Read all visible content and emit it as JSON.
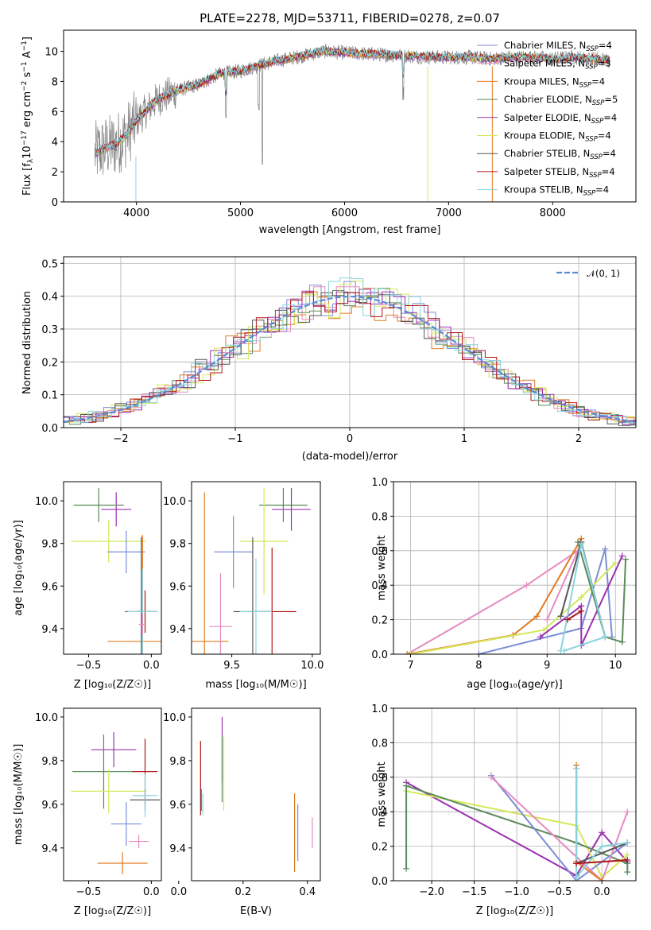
{
  "figure": {
    "title": "PLATE=2278, MJD=53711, FIBERID=0278, z=0.07"
  },
  "colors": {
    "Chabrier MILES": "#7b8dd6",
    "Salpeter MILES": "#e58ac0",
    "Kroupa MILES": "#e07b20",
    "Chabrier ELODIE": "#5a8a5a",
    "Salpeter ELODIE": "#9b30b0",
    "Kroupa ELODIE": "#d4e85a",
    "Chabrier STELIB": "#555555",
    "Salpeter STELIB": "#b01515",
    "Kroupa STELIB": "#8ad4e0",
    "data": "#808080",
    "gaussian": "#5b8bd6"
  },
  "chart_data": [
    {
      "id": "spectrum",
      "type": "line",
      "title": "PLATE=2278, MJD=53711, FIBERID=0278, z=0.07",
      "xlabel": "wavelength [Angstrom, rest frame]",
      "ylabel_main": "Flux [f",
      "ylabel_sub": "λ",
      "ylabel_rest": "10",
      "ylabel_sup1": "−17",
      "ylabel_mid": " erg cm",
      "ylabel_sup2": "−2",
      "ylabel_s": " s",
      "ylabel_sup3": "−1",
      "ylabel_A": " A",
      "ylabel_sup4": "−1",
      "ylabel_end": "]",
      "xlim": [
        3300,
        8800
      ],
      "ylim": [
        0,
        11.4
      ],
      "xticks": [
        4000,
        5000,
        6000,
        7000,
        8000
      ],
      "yticks": [
        0,
        2,
        4,
        6,
        8,
        10
      ],
      "continuum_x": [
        3600,
        3700,
        3800,
        3900,
        4000,
        4200,
        4400,
        4600,
        4800,
        5000,
        5300,
        5600,
        5800,
        6000,
        6300,
        6600,
        6900,
        7200,
        7400,
        7600,
        7800,
        8000,
        8200,
        8400,
        8550
      ],
      "continuum_y": [
        3.2,
        3.6,
        3.8,
        4.4,
        5.4,
        6.8,
        7.4,
        7.8,
        8.5,
        8.7,
        9.3,
        9.7,
        10.0,
        9.9,
        9.8,
        9.7,
        9.6,
        9.6,
        9.5,
        9.6,
        9.6,
        9.5,
        9.6,
        9.5,
        9.4
      ],
      "legend": [
        {
          "name": "Chabrier MILES",
          "label": "Chabrier MILES, N",
          "sub": "SSP",
          "val": "=4"
        },
        {
          "name": "Salpeter MILES",
          "label": "Salpeter MILES, N",
          "sub": "SSP",
          "val": "=3"
        },
        {
          "name": "Kroupa MILES",
          "label": "Kroupa MILES, N",
          "sub": "SSP",
          "val": "=4"
        },
        {
          "name": "Chabrier ELODIE",
          "label": "Chabrier ELODIE, N",
          "sub": "SSP",
          "val": "=5"
        },
        {
          "name": "Salpeter ELODIE",
          "label": "Salpeter ELODIE, N",
          "sub": "SSP",
          "val": "=4"
        },
        {
          "name": "Kroupa ELODIE",
          "label": "Kroupa ELODIE, N",
          "sub": "SSP",
          "val": "=4"
        },
        {
          "name": "Chabrier STELIB",
          "label": "Chabrier STELIB, N",
          "sub": "SSP",
          "val": "=4"
        },
        {
          "name": "Salpeter STELIB",
          "label": "Salpeter STELIB, N",
          "sub": "SSP",
          "val": "=4"
        },
        {
          "name": "Kroupa STELIB",
          "label": "Kroupa STELIB, N",
          "sub": "SSP",
          "val": "=4"
        }
      ]
    },
    {
      "id": "residuals",
      "type": "histogram",
      "xlabel": "(data-model)/error",
      "ylabel": "Normed distribution",
      "xlim": [
        -2.5,
        2.5
      ],
      "ylim": [
        0,
        0.52
      ],
      "xticks": [
        -2,
        -1,
        0,
        1,
        2
      ],
      "xticklabels": [
        "−2",
        "−1",
        "0",
        "1",
        "2"
      ],
      "yticks": [
        0.0,
        0.1,
        0.2,
        0.3,
        0.4,
        0.5
      ],
      "yticklabels": [
        "0.0",
        "0.1",
        "0.2",
        "0.3",
        "0.4",
        "0.5"
      ],
      "grid": true,
      "gaussian_label": "𝒩(0, 1)",
      "bin_width": 0.1
    },
    {
      "id": "age-vs-Z",
      "type": "errorbar",
      "xlabel": "Z [log₁₀(Z/Z☉)]",
      "ylabel": "age  [log₁₀(age/yr)]",
      "xlim": [
        -0.7,
        0.08
      ],
      "ylim": [
        9.28,
        10.09
      ],
      "xticks": [
        -0.5,
        0.0
      ],
      "xticklabels": [
        "−0.5",
        "0.0"
      ],
      "yticks": [
        9.4,
        9.6,
        9.8,
        10.0
      ],
      "yticklabels": [
        "9.4",
        "9.6",
        "9.8",
        "10.0"
      ],
      "points": [
        {
          "model": "Salpeter ELODIE",
          "x": -0.28,
          "xerr": 0.12,
          "y": 9.96,
          "yerr": 0.08
        },
        {
          "model": "Chabrier ELODIE",
          "x": -0.42,
          "xerr": 0.2,
          "y": 9.98,
          "yerr": 0.08
        },
        {
          "model": "Kroupa ELODIE",
          "x": -0.34,
          "xerr": 0.3,
          "y": 9.81,
          "yerr": 0.1
        },
        {
          "model": "Chabrier MILES",
          "x": -0.2,
          "xerr": 0.15,
          "y": 9.76,
          "yerr": 0.1
        },
        {
          "model": "Kroupa MILES",
          "x": -0.07,
          "xerr": 0.28,
          "y": 9.34,
          "yerr": 0.5
        },
        {
          "model": "Chabrier STELIB",
          "x": -0.08,
          "xerr": 0.13,
          "y": 9.48,
          "yerr": 0.35
        },
        {
          "model": "Salpeter STELIB",
          "x": -0.05,
          "xerr": 0.08,
          "y": 9.48,
          "yerr": 0.1
        },
        {
          "model": "Kroupa STELIB",
          "x": -0.07,
          "xerr": 0.12,
          "y": 9.48,
          "yerr": 0.2
        },
        {
          "model": "Salpeter MILES",
          "x": -0.07,
          "xerr": 0.03,
          "y": 9.42,
          "yerr": 0.05
        }
      ]
    },
    {
      "id": "age-vs-mass",
      "type": "errorbar",
      "xlabel": "mass [log₁₀(M/M☉)]",
      "xlim": [
        9.25,
        10.05
      ],
      "ylim": [
        9.28,
        10.09
      ],
      "xticks": [
        9.5,
        10.0
      ],
      "xticklabels": [
        "9.5",
        "10.0"
      ],
      "yticks": [
        9.4,
        9.6,
        9.8,
        10.0
      ],
      "yticklabels": [
        "9.4",
        "9.6",
        "9.8",
        "10.0"
      ],
      "points": [
        {
          "model": "Salpeter ELODIE",
          "x": 9.87,
          "xerr": 0.12,
          "y": 9.96,
          "yerr": 0.1
        },
        {
          "model": "Chabrier ELODIE",
          "x": 9.82,
          "xerr": 0.15,
          "y": 9.98,
          "yerr": 0.08
        },
        {
          "model": "Kroupa ELODIE",
          "x": 9.7,
          "xerr": 0.15,
          "y": 9.81,
          "yerr": 0.25
        },
        {
          "model": "Chabrier MILES",
          "x": 9.51,
          "xerr": 0.12,
          "y": 9.76,
          "yerr": 0.17
        },
        {
          "model": "Kroupa MILES",
          "x": 9.33,
          "xerr": 0.15,
          "y": 9.34,
          "yerr": 0.7
        },
        {
          "model": "Salpeter MILES",
          "x": 9.43,
          "xerr": 0.07,
          "y": 9.41,
          "yerr": 0.25
        },
        {
          "model": "Chabrier STELIB",
          "x": 9.63,
          "xerr": 0.12,
          "y": 9.48,
          "yerr": 0.35
        },
        {
          "model": "Salpeter STELIB",
          "x": 9.75,
          "xerr": 0.15,
          "y": 9.48,
          "yerr": 0.3
        },
        {
          "model": "Kroupa STELIB",
          "x": 9.65,
          "xerr": 0.1,
          "y": 9.48,
          "yerr": 0.25
        }
      ]
    },
    {
      "id": "weight-vs-age",
      "type": "line",
      "xlabel": "age  [log₁₀(age/yr)]",
      "ylabel": "mass weight",
      "xlim": [
        6.75,
        10.3
      ],
      "ylim": [
        0,
        1
      ],
      "xticks": [
        7,
        8,
        9,
        10
      ],
      "yticks": [
        0.0,
        0.2,
        0.4,
        0.6,
        0.8,
        1.0
      ],
      "yticklabels": [
        "0.0",
        "0.2",
        "0.4",
        "0.6",
        "0.8",
        "1.0"
      ],
      "grid": true,
      "series": [
        {
          "model": "Salpeter MILES",
          "x": [
            6.95,
            8.7,
            9.45,
            9.0
          ],
          "y": [
            0.0,
            0.4,
            0.6,
            0.2
          ]
        },
        {
          "model": "Kroupa MILES",
          "x": [
            6.95,
            8.5,
            8.85,
            9.5
          ],
          "y": [
            0.0,
            0.11,
            0.22,
            0.67
          ]
        },
        {
          "model": "Chabrier MILES",
          "x": [
            8.0,
            9.5,
            9.85,
            9.95
          ],
          "y": [
            0.0,
            0.15,
            0.61,
            0.1
          ]
        },
        {
          "model": "Kroupa ELODIE",
          "x": [
            7.0,
            8.95,
            9.5,
            10.0
          ],
          "y": [
            0.0,
            0.14,
            0.33,
            0.53
          ]
        },
        {
          "model": "Salpeter ELODIE",
          "x": [
            8.9,
            9.5,
            9.5,
            10.1
          ],
          "y": [
            0.1,
            0.28,
            0.05,
            0.57
          ]
        },
        {
          "model": "Chabrier ELODIE",
          "x": [
            9.45,
            9.85,
            10.1,
            10.15
          ],
          "y": [
            0.65,
            0.1,
            0.07,
            0.55
          ]
        },
        {
          "model": "Chabrier STELIB",
          "x": [
            9.2,
            9.5,
            9.85
          ],
          "y": [
            0.22,
            0.65,
            0.1
          ]
        },
        {
          "model": "Kroupa STELIB",
          "x": [
            9.2,
            9.5,
            9.85,
            9.25
          ],
          "y": [
            0.02,
            0.64,
            0.1,
            0.02
          ]
        },
        {
          "model": "Salpeter STELIB",
          "x": [
            9.3,
            9.5
          ],
          "y": [
            0.2,
            0.25
          ]
        }
      ]
    },
    {
      "id": "mass-vs-Z",
      "type": "errorbar",
      "xlabel": "Z [log₁₀(Z/Z☉)]",
      "ylabel": "mass [log₁₀(M/M☉)]",
      "xlim": [
        -0.7,
        0.08
      ],
      "ylim": [
        9.25,
        10.04
      ],
      "xticks": [
        -0.5,
        0.0
      ],
      "xticklabels": [
        "−0.5",
        "0.0"
      ],
      "yticks": [
        9.4,
        9.6,
        9.8,
        10.0
      ],
      "yticklabels": [
        "9.4",
        "9.6",
        "9.8",
        "10.0"
      ],
      "points": [
        {
          "model": "Salpeter ELODIE",
          "x": -0.3,
          "xerr": 0.18,
          "y": 9.85,
          "yerr": 0.08
        },
        {
          "model": "Chabrier ELODIE",
          "x": -0.38,
          "xerr": 0.25,
          "y": 9.75,
          "yerr": 0.17
        },
        {
          "model": "Kroupa ELODIE",
          "x": -0.34,
          "xerr": 0.3,
          "y": 9.66,
          "yerr": 0.1
        },
        {
          "model": "Chabrier MILES",
          "x": -0.2,
          "xerr": 0.12,
          "y": 9.51,
          "yerr": 0.1
        },
        {
          "model": "Kroupa MILES",
          "x": -0.23,
          "xerr": 0.2,
          "y": 9.33,
          "yerr": 0.05
        },
        {
          "model": "Salpeter MILES",
          "x": -0.1,
          "xerr": 0.08,
          "y": 9.43,
          "yerr": 0.03
        },
        {
          "model": "Salpeter STELIB",
          "x": -0.05,
          "xerr": 0.1,
          "y": 9.75,
          "yerr": 0.15
        },
        {
          "model": "Chabrier STELIB",
          "x": -0.05,
          "xerr": 0.12,
          "y": 9.62,
          "yerr": 0.05
        },
        {
          "model": "Kroupa STELIB",
          "x": -0.05,
          "xerr": 0.1,
          "y": 9.64,
          "yerr": 0.1
        }
      ]
    },
    {
      "id": "mass-vs-ebv",
      "type": "errorbar",
      "xlabel": "E(B-V)",
      "xlim": [
        0.04,
        0.44
      ],
      "ylim": [
        9.25,
        10.04
      ],
      "xticks": [
        0.0,
        0.2,
        0.4
      ],
      "xticklabels": [
        "0.0",
        "0.2",
        "0.4"
      ],
      "yticks": [
        9.4,
        9.6,
        9.8,
        10.0
      ],
      "yticklabels": [
        "9.4",
        "9.6",
        "9.8",
        "10.0"
      ],
      "points": [
        {
          "model": "Salpeter STELIB",
          "x": 0.068,
          "y": 9.72,
          "yerr": 0.17
        },
        {
          "model": "Chabrier STELIB",
          "x": 0.07,
          "y": 9.62,
          "yerr": 0.05
        },
        {
          "model": "Kroupa STELIB",
          "x": 0.075,
          "y": 9.6,
          "yerr": 0.05
        },
        {
          "model": "Salpeter ELODIE",
          "x": 0.135,
          "y": 9.85,
          "yerr": 0.15
        },
        {
          "model": "Chabrier ELODIE",
          "x": 0.135,
          "y": 9.76,
          "yerr": 0.15
        },
        {
          "model": "Kroupa ELODIE",
          "x": 0.14,
          "y": 9.74,
          "yerr": 0.17
        },
        {
          "model": "Kroupa MILES",
          "x": 0.36,
          "y": 9.47,
          "yerr": 0.18
        },
        {
          "model": "Chabrier MILES",
          "x": 0.37,
          "y": 9.47,
          "yerr": 0.13
        },
        {
          "model": "Salpeter MILES",
          "x": 0.415,
          "y": 9.47,
          "yerr": 0.07
        }
      ]
    },
    {
      "id": "weight-vs-Z",
      "type": "line",
      "xlabel": "Z [log₁₀(Z/Z☉)]",
      "ylabel": "mass weight",
      "xlim": [
        -2.45,
        0.4
      ],
      "ylim": [
        0,
        1
      ],
      "xticks": [
        -2.0,
        -1.5,
        -1.0,
        -0.5,
        0.0
      ],
      "xticklabels": [
        "−2.0",
        "−1.5",
        "−1.0",
        "−0.5",
        "0.0"
      ],
      "yticks": [
        0.0,
        0.2,
        0.4,
        0.6,
        0.8,
        1.0
      ],
      "yticklabels": [
        "0.0",
        "0.2",
        "0.4",
        "0.6",
        "0.8",
        "1.0"
      ],
      "grid": true,
      "series": [
        {
          "model": "Salpeter ELODIE",
          "x": [
            -2.3,
            -0.3,
            0.0,
            0.3
          ],
          "y": [
            0.57,
            0.03,
            0.28,
            0.11
          ]
        },
        {
          "model": "Kroupa ELODIE",
          "x": [
            -2.3,
            -0.3,
            0.0,
            0.3
          ],
          "y": [
            0.52,
            0.32,
            0.02,
            0.15
          ]
        },
        {
          "model": "Chabrier ELODIE",
          "x": [
            -2.3,
            -2.3,
            -0.3,
            0.3,
            0.3
          ],
          "y": [
            0.07,
            0.55,
            0.22,
            0.1,
            0.05
          ]
        },
        {
          "model": "Chabrier MILES",
          "x": [
            -1.3,
            -0.3,
            0.3
          ],
          "y": [
            0.61,
            0.0,
            0.22
          ]
        },
        {
          "model": "Salpeter MILES",
          "x": [
            -1.3,
            0.0,
            0.3
          ],
          "y": [
            0.6,
            0.0,
            0.4
          ]
        },
        {
          "model": "Kroupa MILES",
          "x": [
            -0.3,
            -0.3,
            0.0
          ],
          "y": [
            0.67,
            0.11,
            0.0
          ]
        },
        {
          "model": "Chabrier STELIB",
          "x": [
            -0.3,
            -0.3,
            0.3
          ],
          "y": [
            0.65,
            0.1,
            0.22
          ]
        },
        {
          "model": "Kroupa STELIB",
          "x": [
            -0.3,
            -0.3,
            0.0,
            0.3
          ],
          "y": [
            0.65,
            0.02,
            0.2,
            0.22
          ]
        },
        {
          "model": "Salpeter STELIB",
          "x": [
            -0.3,
            0.3
          ],
          "y": [
            0.1,
            0.12
          ]
        }
      ]
    }
  ]
}
